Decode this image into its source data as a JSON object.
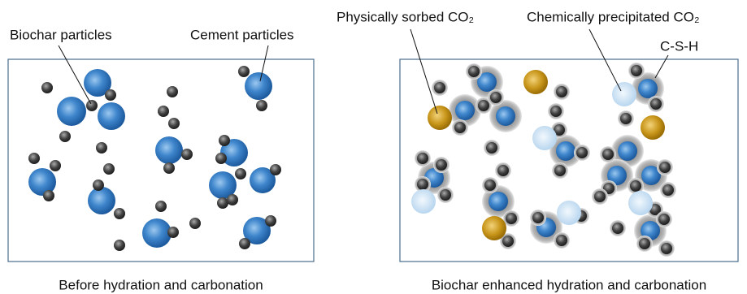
{
  "left": {
    "caption": "Before hydration and carbonation",
    "labels": [
      "Biochar particles",
      "Cement particles"
    ]
  },
  "right": {
    "caption": "Biochar enhanced hydration and carbonation",
    "labels": [
      "Physically sorbed CO₂",
      "Chemically precipitated CO₂",
      "C-S-H"
    ]
  }
}
